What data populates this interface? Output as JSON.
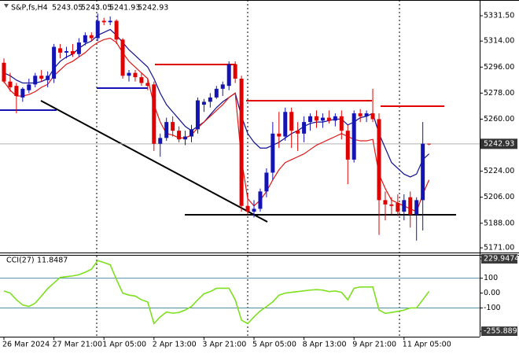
{
  "chart_data": [
    {
      "type": "candlestick",
      "title": "S&P,fs,H4",
      "categories": [
        "26 Mar 2024",
        null,
        null,
        null,
        null,
        null,
        null,
        null,
        "27 Mar 21:00",
        null,
        null,
        null,
        null,
        null,
        null,
        null,
        "1 Apr 05:00",
        null,
        null,
        null,
        null,
        null,
        null,
        null,
        "2 Apr 13:00",
        null,
        null,
        null,
        null,
        null,
        null,
        null,
        "3 Apr 21:00",
        null,
        null,
        null,
        null,
        null,
        null,
        null,
        "5 Apr 05:00",
        null,
        null,
        null,
        null,
        null,
        null,
        null,
        "8 Apr 13:00",
        null,
        null,
        null,
        null,
        null,
        null,
        null,
        "9 Apr 21:00",
        null,
        null,
        null,
        null,
        null,
        null,
        null,
        "11 Apr 05:00",
        null,
        null,
        null,
        null
      ],
      "open": [
        5299,
        5286,
        5283,
        5275,
        5280,
        5284,
        5290,
        5287,
        5288,
        5309,
        5306,
        5307,
        5305,
        5313,
        5318,
        5316,
        5328,
        5327,
        5328,
        5315,
        5290,
        5292,
        5289,
        5285,
        5284,
        5243,
        5247,
        5258,
        5252,
        5246,
        5248,
        5253,
        5270,
        5272,
        5275,
        5281,
        5283,
        5298,
        5288,
        5200,
        5196,
        5198,
        5210,
        5223,
        5250,
        5248,
        5265,
        5252,
        5250,
        5258,
        5262,
        5259,
        5261,
        5259,
        5262,
        5252,
        5232,
        5264,
        5262,
        5264,
        5260,
        5204,
        5201,
        5202,
        5196,
        5206,
        5194,
        5204,
        5243.05
      ],
      "high": [
        5302,
        5292,
        5285,
        5282,
        5288,
        5292,
        5294,
        5293,
        5312,
        5312,
        5310,
        5312,
        5316,
        5320,
        5320,
        5333,
        5330,
        5331,
        5329,
        5316,
        5294,
        5294,
        5292,
        5288,
        5286,
        5250,
        5261,
        5262,
        5255,
        5252,
        5256,
        5275,
        5274,
        5278,
        5283,
        5286,
        5300,
        5300,
        5290,
        5208,
        5204,
        5212,
        5226,
        5258,
        5265,
        5268,
        5268,
        5258,
        5262,
        5264,
        5266,
        5264,
        5266,
        5264,
        5266,
        5256,
        5266,
        5267,
        5266,
        5281,
        5264,
        5210,
        5206,
        5208,
        5208,
        5210,
        5206,
        5258,
        5243.05
      ],
      "low": [
        5285,
        5279,
        5264,
        5272,
        5278,
        5282,
        5286,
        5282,
        5285,
        5302,
        5302,
        5303,
        5303,
        5311,
        5314,
        5314,
        5325,
        5325,
        5312,
        5288,
        5286,
        5286,
        5283,
        5280,
        5238,
        5234,
        5245,
        5248,
        5244,
        5242,
        5244,
        5250,
        5265,
        5268,
        5274,
        5276,
        5280,
        5285,
        5196,
        5194,
        5192,
        5196,
        5206,
        5218,
        5240,
        5245,
        5240,
        5238,
        5244,
        5252,
        5254,
        5254,
        5257,
        5255,
        5246,
        5215,
        5230,
        5258,
        5258,
        5258,
        5180,
        5190,
        5194,
        5193,
        5190,
        5185,
        5176,
        5183,
        5241.93
      ],
      "close": [
        5286,
        5282,
        5276,
        5281,
        5284,
        5290,
        5288,
        5290,
        5310,
        5306,
        5307,
        5305,
        5313,
        5318,
        5316,
        5328,
        5327,
        5328,
        5315,
        5290,
        5292,
        5289,
        5285,
        5283,
        5243,
        5247,
        5258,
        5252,
        5246,
        5248,
        5253,
        5273,
        5272,
        5275,
        5281,
        5284,
        5298,
        5288,
        5200,
        5196,
        5198,
        5210,
        5223,
        5250,
        5248,
        5265,
        5252,
        5250,
        5258,
        5262,
        5259,
        5261,
        5259,
        5262,
        5252,
        5232,
        5264,
        5262,
        5264,
        5260,
        5204,
        5201,
        5200,
        5196,
        5204,
        5194,
        5204,
        5243,
        5242.93
      ],
      "up_color": "#1414b4",
      "down_color": "#e00000",
      "overlays": [
        {
          "color": "#101090",
          "values": [
            5292,
            5290,
            5287,
            5285,
            5285,
            5285,
            5286,
            5288,
            5295,
            5300,
            5303,
            5305,
            5309,
            5312,
            5314,
            5318,
            5320,
            5322,
            5318,
            5313,
            5308,
            5304,
            5300,
            5296,
            5288,
            5278,
            5270,
            5265,
            5260,
            5255,
            5252,
            5255,
            5258,
            5263,
            5268,
            5272,
            5275,
            5278,
            5262,
            5250,
            5244,
            5240,
            5240,
            5242,
            5244,
            5247,
            5250,
            5252,
            5255,
            5257,
            5258,
            5258,
            5259,
            5260,
            5260,
            5256,
            5258,
            5261,
            5262,
            5264,
            5250,
            5240,
            5230,
            5226,
            5222,
            5220,
            5222,
            5232,
            5236
          ]
        },
        {
          "color": "#e01818",
          "values": [
            5286,
            5280,
            5276,
            5276,
            5277,
            5279,
            5282,
            5284,
            5290,
            5294,
            5298,
            5300,
            5303,
            5306,
            5310,
            5313,
            5315,
            5316,
            5313,
            5306,
            5300,
            5296,
            5292,
            5288,
            5270,
            5258,
            5250,
            5249,
            5247,
            5247,
            5249,
            5254,
            5258,
            5262,
            5266,
            5270,
            5275,
            5278,
            5232,
            5205,
            5200,
            5204,
            5210,
            5218,
            5225,
            5230,
            5232,
            5234,
            5236,
            5239,
            5242,
            5244,
            5246,
            5248,
            5250,
            5248,
            5246,
            5245,
            5245,
            5246,
            5222,
            5212,
            5204,
            5202,
            5200,
            5198,
            5196,
            5208,
            5218
          ]
        }
      ],
      "ylim": [
        5169.4,
        5341.3
      ],
      "yticks": [
        {
          "value": 5331.5,
          "label": "5331.50"
        },
        {
          "value": 5314,
          "label": "5314.00"
        },
        {
          "value": 5296,
          "label": "5296.00"
        },
        {
          "value": 5278,
          "label": "5278.00"
        },
        {
          "value": 5260,
          "label": "5260.00"
        },
        {
          "value": 5224,
          "label": "5224.00"
        },
        {
          "value": 5206,
          "label": "5206.00"
        },
        {
          "value": 5188,
          "label": "5188.00"
        },
        {
          "value": 5171,
          "label": "5171.00"
        }
      ]
    },
    {
      "type": "line",
      "title": "CCI(27)",
      "series": [
        {
          "color": "#7ee01e",
          "values": [
            14,
            0,
            -45,
            -80,
            -90,
            -68,
            -20,
            30,
            68,
            105,
            110,
            115,
            123,
            140,
            160,
            218,
            205,
            190,
            91,
            0,
            -14,
            -20,
            -45,
            -60,
            -205,
            -160,
            -127,
            -135,
            -130,
            -114,
            -90,
            -45,
            -5,
            10,
            32,
            32,
            32,
            -45,
            -182,
            -205,
            -160,
            -120,
            -91,
            -59,
            -14,
            0,
            5,
            10,
            15,
            20,
            23,
            20,
            10,
            14,
            5,
            -45,
            32,
            41,
            41,
            41,
            -114,
            -136,
            -130,
            -123,
            -114,
            -100,
            -100,
            -45,
            11.8487
          ]
        }
      ],
      "levels": [
        100,
        -100
      ],
      "ylim": [
        -255.8896,
        229.9474
      ],
      "yticks": [
        229.9474,
        100,
        {
          "value": 0,
          "label": "0.00"
        },
        -100,
        -255.8896
      ]
    }
  ]
}
